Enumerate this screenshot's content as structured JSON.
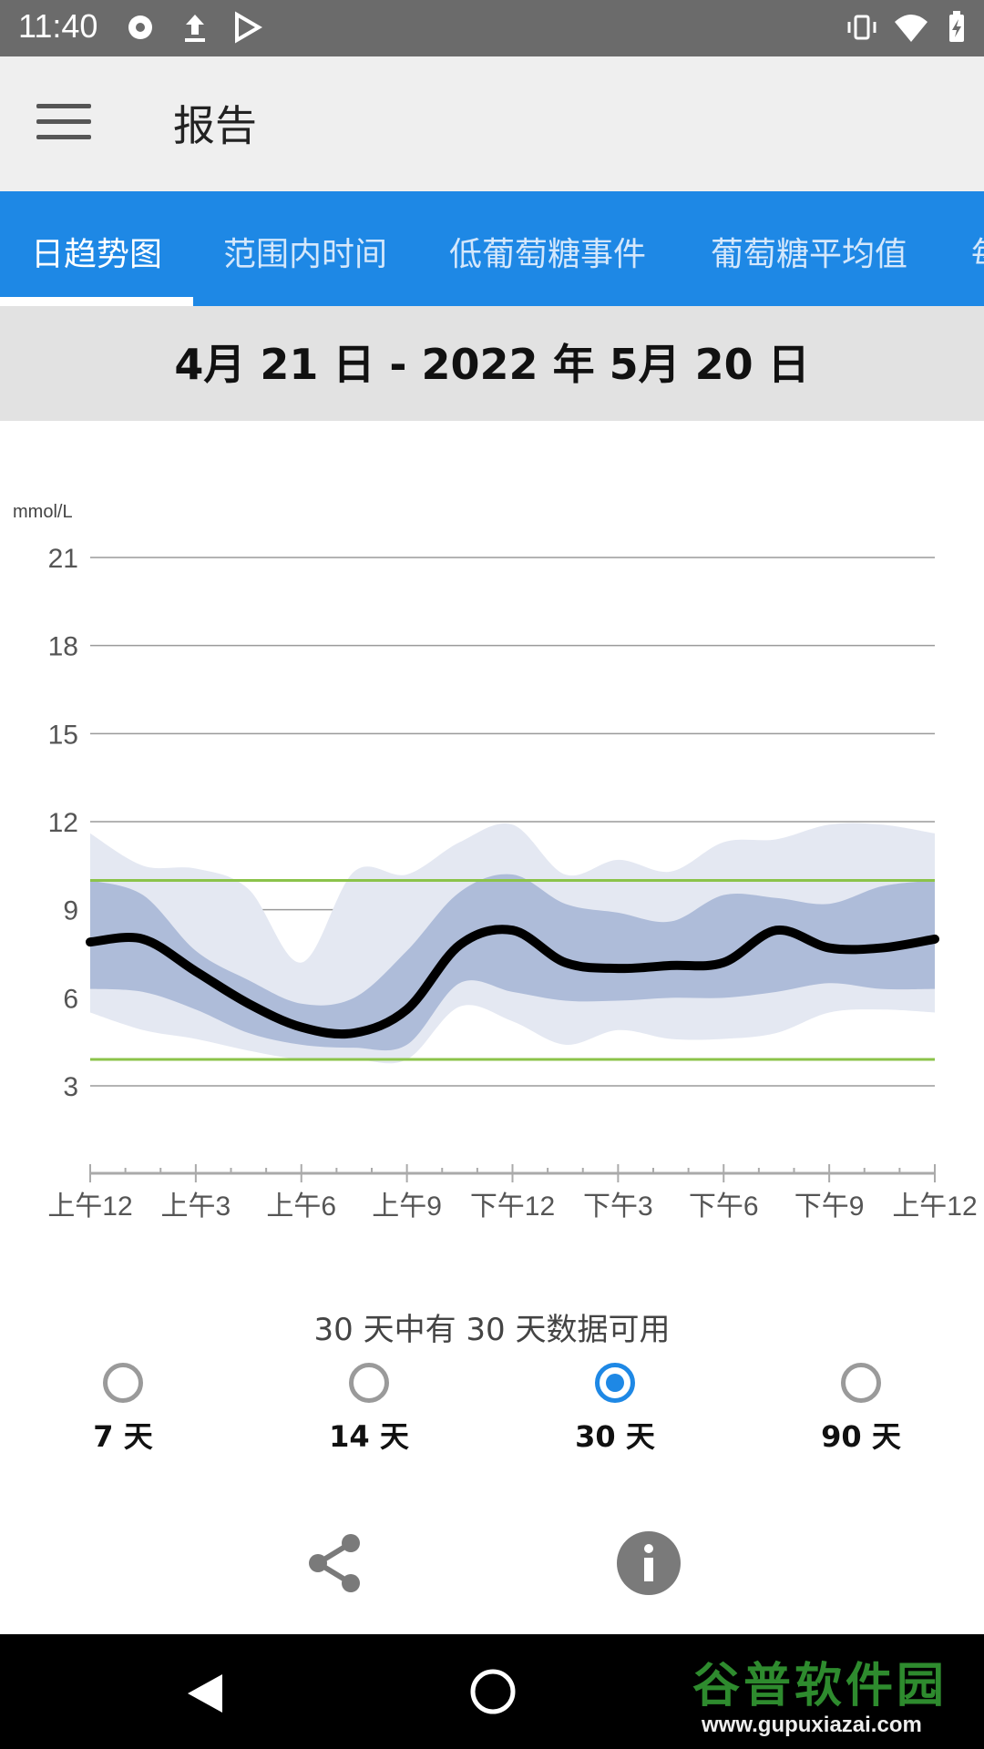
{
  "status_bar": {
    "time": "11:40"
  },
  "app_bar": {
    "title": "报告"
  },
  "tabs": [
    {
      "label": "日趋势图",
      "active": true
    },
    {
      "label": "范围内时间",
      "active": false
    },
    {
      "label": "低葡萄糖事件",
      "active": false
    },
    {
      "label": "葡萄糖平均值",
      "active": false
    },
    {
      "label": "每",
      "active": false
    }
  ],
  "date_range": "4月 21 日 - 2022 年 5月 20 日",
  "chart_data": {
    "type": "area",
    "ylabel": "mmol/L",
    "y_ticks": [
      "21",
      "18",
      "15",
      "12",
      "9",
      "6",
      "3"
    ],
    "ylim": [
      0,
      21
    ],
    "x_tick_labels": [
      "上午12",
      "上午3",
      "上午6",
      "上午9",
      "下午12",
      "下午3",
      "下午6",
      "下午9",
      "上午12"
    ],
    "x": [
      0,
      1.5,
      3,
      4.5,
      6,
      7.5,
      9,
      10.5,
      12,
      13.5,
      15,
      16.5,
      18,
      19.5,
      21,
      22.5,
      24
    ],
    "target_range": [
      3.9,
      10.0
    ],
    "series": [
      {
        "name": "",
        "role": "median",
        "color": "#000000",
        "values": [
          7.9,
          8.0,
          6.9,
          5.8,
          5.0,
          4.8,
          5.6,
          7.8,
          8.3,
          7.2,
          7.0,
          7.1,
          7.2,
          8.3,
          7.7,
          7.7,
          8.0
        ]
      },
      {
        "name": "",
        "role": "p25",
        "color": "#aebcd9",
        "values": [
          6.3,
          6.2,
          5.6,
          4.8,
          4.4,
          4.3,
          4.4,
          6.5,
          6.2,
          5.9,
          5.9,
          6.0,
          6.0,
          6.2,
          6.5,
          6.3,
          6.3
        ]
      },
      {
        "name": "",
        "role": "p75",
        "color": "#aebcd9",
        "values": [
          10.0,
          9.5,
          7.6,
          6.6,
          5.8,
          6.0,
          7.6,
          9.6,
          10.2,
          9.2,
          8.9,
          8.6,
          9.5,
          9.4,
          9.2,
          9.8,
          10.0
        ]
      },
      {
        "name": "",
        "role": "p10",
        "color": "#e4e8f2",
        "values": [
          5.5,
          4.9,
          4.6,
          4.2,
          3.9,
          3.9,
          3.9,
          5.7,
          5.2,
          4.4,
          4.9,
          4.6,
          4.6,
          4.8,
          5.5,
          5.6,
          5.5
        ]
      },
      {
        "name": "",
        "role": "p90",
        "color": "#e4e8f2",
        "values": [
          11.6,
          10.5,
          10.4,
          9.7,
          7.2,
          10.3,
          10.2,
          11.3,
          11.9,
          10.2,
          10.7,
          10.3,
          11.3,
          11.4,
          11.9,
          11.9,
          11.6
        ]
      }
    ],
    "grid": true,
    "legend": "none"
  },
  "availability_text": "30 天中有 30 天数据可用",
  "period_options": [
    {
      "label": "7 天",
      "selected": false
    },
    {
      "label": "14 天",
      "selected": false
    },
    {
      "label": "30 天",
      "selected": true
    },
    {
      "label": "90 天",
      "selected": false
    }
  ],
  "colors": {
    "accent": "#1e88e5",
    "target_line": "#8bc34a",
    "outer_band": "#e4e8f2",
    "inner_band": "#aebcd9"
  },
  "icons": {
    "share": "share-icon",
    "info": "info-icon"
  },
  "watermark": {
    "big": "谷普软件园",
    "small": "www.gupuxiazai.com"
  }
}
